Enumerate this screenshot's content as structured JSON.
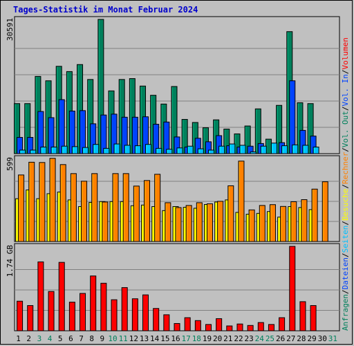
{
  "title": "Tages-Statistik im Monat Februar 2024",
  "side_legend": [
    {
      "text": "Anfragen",
      "color": "#00805c"
    },
    {
      "text": "/",
      "color": "#000000"
    },
    {
      "text": "Dateien",
      "color": "#0042ff"
    },
    {
      "text": "/",
      "color": "#000000"
    },
    {
      "text": "Seiten",
      "color": "#00c0ff"
    },
    {
      "text": "/",
      "color": "#000000"
    },
    {
      "text": "Besuche",
      "color": "#ffff00"
    },
    {
      "text": "/",
      "color": "#000000"
    },
    {
      "text": "Rechner",
      "color": "#ff8000"
    },
    {
      "text": "/",
      "color": "#000000"
    },
    {
      "text": "Vol. Out",
      "color": "#00805c"
    },
    {
      "text": "/",
      "color": "#000000"
    },
    {
      "text": "Vol. In",
      "color": "#0042ff"
    },
    {
      "text": "/",
      "color": "#000000"
    },
    {
      "text": "Volumen",
      "color": "#ff0000"
    }
  ],
  "chart_data": [
    {
      "type": "bar",
      "ylabel": "30591",
      "ylim": [
        0,
        30591
      ],
      "grid": true,
      "x": [
        "1",
        "2",
        "3",
        "4",
        "5",
        "6",
        "7",
        "8",
        "9",
        "10",
        "11",
        "12",
        "13",
        "14",
        "15",
        "16",
        "17",
        "18",
        "19",
        "20",
        "21",
        "22",
        "23",
        "24",
        "25",
        "26",
        "27",
        "28",
        "29",
        "30",
        "31"
      ],
      "series": [
        {
          "name": "Anfragen",
          "color": "#00805c",
          "values": [
            11400,
            11400,
            17600,
            16600,
            19900,
            18700,
            20300,
            16900,
            30591,
            14300,
            16900,
            17100,
            15400,
            13300,
            11300,
            15300,
            7800,
            7100,
            5900,
            7700,
            5600,
            4500,
            6300,
            10200,
            3300,
            11000,
            27800,
            11600,
            11400,
            0,
            0
          ]
        },
        {
          "name": "Dateien",
          "color": "#0042ff",
          "values": [
            3700,
            3700,
            9600,
            8200,
            12300,
            9700,
            9800,
            6800,
            8800,
            9000,
            8300,
            8300,
            8400,
            6700,
            7200,
            3800,
            1500,
            3500,
            2700,
            4100,
            1800,
            1500,
            1700,
            2300,
            0,
            2500,
            16600,
            5300,
            4000,
            0,
            0
          ]
        },
        {
          "name": "Seiten",
          "color": "#00c0ff",
          "values": [
            800,
            800,
            1500,
            1500,
            1700,
            1600,
            1400,
            2100,
            1200,
            2200,
            1900,
            1800,
            2100,
            1200,
            1000,
            1300,
            1700,
            1100,
            800,
            1700,
            2200,
            1900,
            400,
            1700,
            2400,
            1800,
            2000,
            1900,
            1500,
            0,
            0
          ]
        }
      ]
    },
    {
      "type": "bar",
      "ylabel": "599",
      "ylim": [
        0,
        599
      ],
      "grid": true,
      "x": [
        "1",
        "2",
        "3",
        "4",
        "5",
        "6",
        "7",
        "8",
        "9",
        "10",
        "11",
        "12",
        "13",
        "14",
        "15",
        "16",
        "17",
        "18",
        "19",
        "20",
        "21",
        "22",
        "23",
        "24",
        "25",
        "26",
        "27",
        "28",
        "29",
        "30",
        "31"
      ],
      "series": [
        {
          "name": "Besuche",
          "color": "#ffff00",
          "values": [
            309,
            372,
            309,
            345,
            357,
            300,
            252,
            282,
            288,
            288,
            288,
            258,
            263,
            252,
            223,
            252,
            247,
            240,
            267,
            285,
            300,
            210,
            197,
            203,
            216,
            176,
            252,
            245,
            230,
            0,
            0
          ]
        },
        {
          "name": "Rechner",
          "color": "#ff8000",
          "values": [
            480,
            572,
            570,
            600,
            555,
            490,
            435,
            490,
            285,
            490,
            490,
            400,
            440,
            485,
            280,
            245,
            260,
            280,
            272,
            290,
            402,
            580,
            228,
            260,
            266,
            253,
            287,
            302,
            378,
            431,
            0
          ]
        }
      ]
    },
    {
      "type": "bar",
      "ylabel": "1.74 GB",
      "ylim": [
        0,
        1.74
      ],
      "grid": true,
      "x": [
        "1",
        "2",
        "3",
        "4",
        "5",
        "6",
        "7",
        "8",
        "9",
        "10",
        "11",
        "12",
        "13",
        "14",
        "15",
        "16",
        "17",
        "18",
        "19",
        "20",
        "21",
        "22",
        "23",
        "24",
        "25",
        "26",
        "27",
        "28",
        "29",
        "30",
        "31"
      ],
      "series": [
        {
          "name": "Vol. Out",
          "color": "#00805c",
          "values": [
            0,
            0,
            0,
            0,
            0,
            0,
            0,
            0,
            0,
            0,
            0,
            0,
            0,
            0,
            0,
            0,
            0,
            0,
            0,
            0,
            0,
            0,
            0,
            0,
            0,
            0,
            0,
            0,
            0,
            0,
            0
          ]
        },
        {
          "name": "Vol. In",
          "color": "#0042ff",
          "values": [
            0,
            0,
            0,
            0,
            0,
            0,
            0,
            0,
            0,
            0,
            0,
            0,
            0,
            0,
            0,
            0,
            0,
            0,
            0,
            0,
            0,
            0,
            0,
            0,
            0,
            0,
            0,
            0,
            0,
            0,
            0
          ]
        },
        {
          "name": "Volumen",
          "color": "#ff0000",
          "values": [
            0.61,
            0.52,
            1.42,
            0.81,
            1.41,
            0.59,
            0.77,
            1.13,
            0.98,
            0.64,
            0.89,
            0.66,
            0.74,
            0.46,
            0.33,
            0.15,
            0.27,
            0.21,
            0.13,
            0.25,
            0.1,
            0.14,
            0.11,
            0.17,
            0.13,
            0.27,
            1.74,
            0.6,
            0.52,
            0,
            0
          ]
        }
      ]
    }
  ],
  "weekend_days": [
    "3",
    "4",
    "10",
    "11",
    "17",
    "18",
    "24",
    "25",
    "31"
  ],
  "colors": {
    "weekday_label": "#000000",
    "weekend_label": "#00805c",
    "background": "#c0c0c0",
    "plot_bg": "#c0c0c0"
  }
}
